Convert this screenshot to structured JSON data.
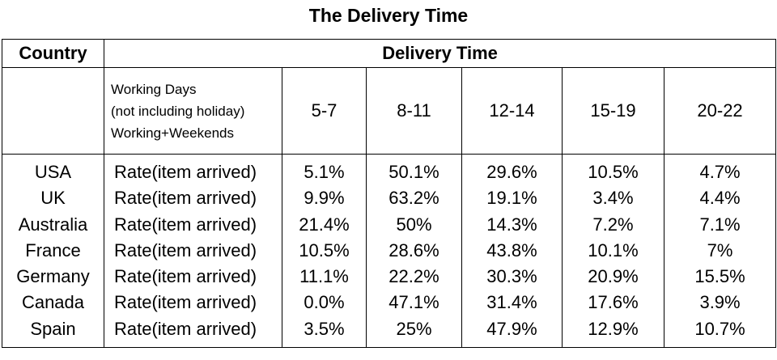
{
  "title": "The Delivery Time",
  "header": {
    "country": "Country",
    "delivery_time": "Delivery Time"
  },
  "subheader": {
    "working_days_lines": [
      "Working Days",
      "(not including holiday)",
      "Working+Weekends"
    ],
    "ranges": [
      "5-7",
      "8-11",
      "12-14",
      "15-19",
      "20-22"
    ]
  },
  "rows": [
    {
      "country": "USA",
      "metric": "Rate(item arrived)",
      "values": [
        "5.1%",
        "50.1%",
        "29.6%",
        "10.5%",
        "4.7%"
      ]
    },
    {
      "country": "UK",
      "metric": "Rate(item arrived)",
      "values": [
        "9.9%",
        "63.2%",
        "19.1%",
        "3.4%",
        "4.4%"
      ]
    },
    {
      "country": "Australia",
      "metric": "Rate(item arrived)",
      "values": [
        "21.4%",
        "50%",
        "14.3%",
        "7.2%",
        "7.1%"
      ]
    },
    {
      "country": "France",
      "metric": "Rate(item arrived)",
      "values": [
        "10.5%",
        "28.6%",
        "43.8%",
        "10.1%",
        "7%"
      ]
    },
    {
      "country": "Germany",
      "metric": "Rate(item arrived)",
      "values": [
        "11.1%",
        "22.2%",
        "30.3%",
        "20.9%",
        "15.5%"
      ]
    },
    {
      "country": "Canada",
      "metric": "Rate(item arrived)",
      "values": [
        "0.0%",
        "47.1%",
        "31.4%",
        "17.6%",
        "3.9%"
      ]
    },
    {
      "country": "Spain",
      "metric": "Rate(item arrived)",
      "values": [
        "3.5%",
        "25%",
        "47.9%",
        "12.9%",
        "10.7%"
      ]
    }
  ]
}
